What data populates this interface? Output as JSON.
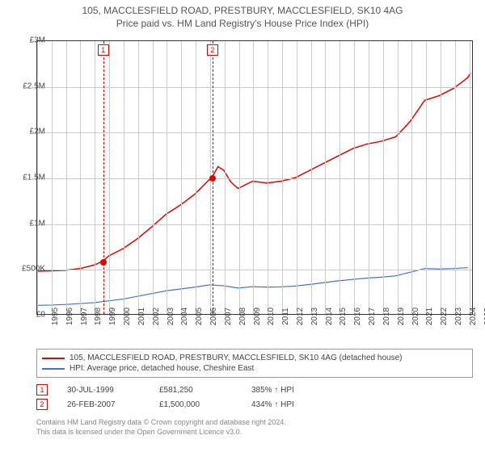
{
  "title": {
    "line1": "105, MACCLESFIELD ROAD, PRESTBURY, MACCLESFIELD, SK10 4AG",
    "line2": "Price paid vs. HM Land Registry's House Price Index (HPI)"
  },
  "chart": {
    "type": "line",
    "background_color": "#ffffff",
    "grid_color": "#cccccc",
    "axis_color": "#333333",
    "x_years": [
      1995,
      1996,
      1997,
      1998,
      1999,
      2000,
      2001,
      2002,
      2003,
      2004,
      2005,
      2006,
      2007,
      2008,
      2009,
      2010,
      2011,
      2012,
      2013,
      2014,
      2015,
      2016,
      2017,
      2018,
      2019,
      2020,
      2021,
      2022,
      2023,
      2024,
      2025
    ],
    "xlim": [
      1995,
      2025.3
    ],
    "ylim": [
      0,
      3000000
    ],
    "ytick_step": 500000,
    "ytick_labels": [
      "£0",
      "£500K",
      "£1M",
      "£1.5M",
      "£2M",
      "£2.5M",
      "£3M"
    ],
    "series": [
      {
        "name": "address",
        "color": "#e60000",
        "line_width": 1.5,
        "points": [
          [
            1995,
            470000
          ],
          [
            1996,
            475000
          ],
          [
            1997,
            480000
          ],
          [
            1998,
            500000
          ],
          [
            1999,
            540000
          ],
          [
            1999.58,
            581250
          ],
          [
            2000,
            640000
          ],
          [
            2001,
            720000
          ],
          [
            2002,
            830000
          ],
          [
            2003,
            960000
          ],
          [
            2004,
            1100000
          ],
          [
            2005,
            1200000
          ],
          [
            2006,
            1320000
          ],
          [
            2007,
            1480000
          ],
          [
            2007.16,
            1500000
          ],
          [
            2007.6,
            1620000
          ],
          [
            2008,
            1580000
          ],
          [
            2008.5,
            1450000
          ],
          [
            2009,
            1380000
          ],
          [
            2010,
            1460000
          ],
          [
            2011,
            1440000
          ],
          [
            2012,
            1460000
          ],
          [
            2013,
            1500000
          ],
          [
            2014,
            1580000
          ],
          [
            2015,
            1660000
          ],
          [
            2016,
            1740000
          ],
          [
            2017,
            1820000
          ],
          [
            2018,
            1870000
          ],
          [
            2019,
            1900000
          ],
          [
            2020,
            1950000
          ],
          [
            2021,
            2120000
          ],
          [
            2022,
            2350000
          ],
          [
            2023,
            2400000
          ],
          [
            2024,
            2480000
          ],
          [
            2024.6,
            2550000
          ],
          [
            2025,
            2600000
          ],
          [
            2025.2,
            2650000
          ]
        ]
      },
      {
        "name": "hpi",
        "color": "#4472c4",
        "line_width": 1.2,
        "points": [
          [
            1995,
            95000
          ],
          [
            1996,
            98000
          ],
          [
            1997,
            105000
          ],
          [
            1998,
            115000
          ],
          [
            1999,
            125000
          ],
          [
            2000,
            145000
          ],
          [
            2001,
            165000
          ],
          [
            2002,
            195000
          ],
          [
            2003,
            225000
          ],
          [
            2004,
            255000
          ],
          [
            2005,
            275000
          ],
          [
            2006,
            295000
          ],
          [
            2007,
            320000
          ],
          [
            2008,
            310000
          ],
          [
            2009,
            285000
          ],
          [
            2010,
            300000
          ],
          [
            2011,
            295000
          ],
          [
            2012,
            298000
          ],
          [
            2013,
            308000
          ],
          [
            2014,
            325000
          ],
          [
            2015,
            345000
          ],
          [
            2016,
            365000
          ],
          [
            2017,
            380000
          ],
          [
            2018,
            395000
          ],
          [
            2019,
            405000
          ],
          [
            2020,
            420000
          ],
          [
            2021,
            460000
          ],
          [
            2022,
            500000
          ],
          [
            2023,
            495000
          ],
          [
            2024,
            500000
          ],
          [
            2025,
            510000
          ]
        ]
      }
    ],
    "event_lines": [
      {
        "x": 1999.58,
        "label": "1"
      },
      {
        "x": 2007.16,
        "label": "2"
      }
    ],
    "sale_points": [
      {
        "x": 1999.58,
        "y": 581250
      },
      {
        "x": 2007.16,
        "y": 1500000
      }
    ]
  },
  "legend": {
    "row1": {
      "color": "#e60000",
      "label": "105, MACCLESFIELD ROAD, PRESTBURY, MACCLESFIELD, SK10 4AG (detached house)"
    },
    "row2": {
      "color": "#4472c4",
      "label": "HPI: Average price, detached house, Cheshire East"
    }
  },
  "sales": [
    {
      "num": "1",
      "date": "30-JUL-1999",
      "price": "£581,250",
      "pct": "385% ↑ HPI"
    },
    {
      "num": "2",
      "date": "26-FEB-2007",
      "price": "£1,500,000",
      "pct": "434% ↑ HPI"
    }
  ],
  "footer": {
    "line1": "Contains HM Land Registry data © Crown copyright and database right 2024.",
    "line2": "This data is licensed under the Open Government Licence v3.0."
  }
}
